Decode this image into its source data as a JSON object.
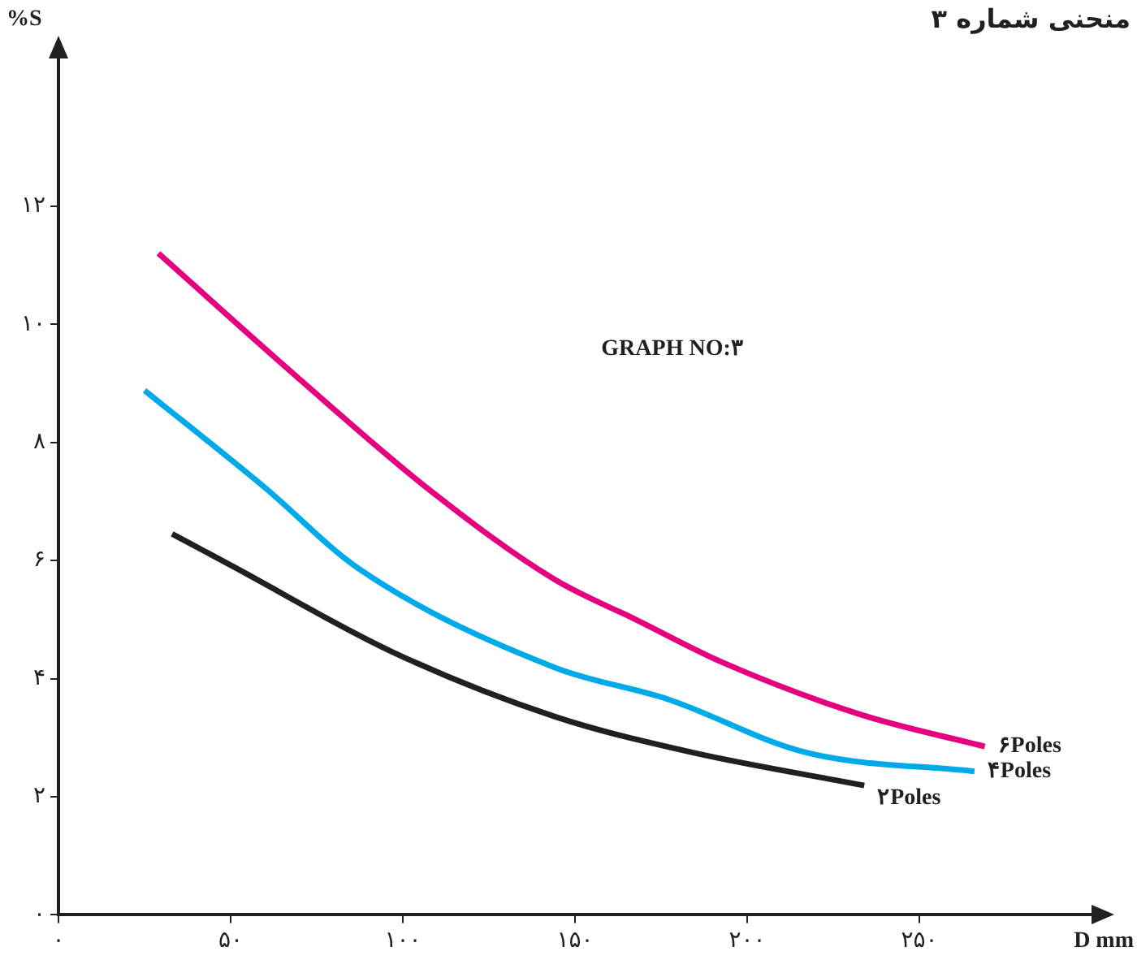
{
  "chart_data": {
    "type": "line",
    "title": "منحنی شماره ۳",
    "xlabel": "D mm",
    "ylabel": "%S",
    "annotations": [
      "GRAPH NO:۳"
    ],
    "xlim": [
      0,
      300
    ],
    "ylim": [
      0,
      14.5
    ],
    "xticks": [
      {
        "value": 0,
        "label": "۰"
      },
      {
        "value": 50,
        "label": "۵۰"
      },
      {
        "value": 100,
        "label": "۱۰۰"
      },
      {
        "value": 150,
        "label": "۱۵۰"
      },
      {
        "value": 200,
        "label": "۲۰۰"
      },
      {
        "value": 250,
        "label": "۲۵۰"
      }
    ],
    "yticks": [
      {
        "value": 0,
        "label": "۰"
      },
      {
        "value": 2,
        "label": "۲"
      },
      {
        "value": 4,
        "label": "۴"
      },
      {
        "value": 6,
        "label": "۶"
      },
      {
        "value": 8,
        "label": "۸"
      },
      {
        "value": 10,
        "label": "۱۰"
      },
      {
        "value": 12,
        "label": "۱۲"
      }
    ],
    "grid": false,
    "legend": false,
    "marker": "none",
    "line_style": "solid",
    "series": [
      {
        "name": "۶Poles",
        "color": "#e4007f",
        "x": [
          29,
          70,
          107,
          144,
          168,
          193,
          233,
          269
        ],
        "values": [
          11.2,
          9.07,
          7.23,
          5.68,
          4.99,
          4.27,
          3.39,
          2.85
        ]
      },
      {
        "name": "۴Poles",
        "color": "#00a9e8",
        "x": [
          25,
          60,
          87,
          144,
          177,
          217,
          266
        ],
        "values": [
          8.88,
          7.23,
          5.87,
          4.19,
          3.65,
          2.75,
          2.43
        ]
      },
      {
        "name": "۲Poles",
        "color": "#231f20",
        "x": [
          33,
          50,
          97,
          144,
          184,
          234
        ],
        "values": [
          6.45,
          5.92,
          4.45,
          3.36,
          2.75,
          2.19
        ]
      }
    ]
  }
}
